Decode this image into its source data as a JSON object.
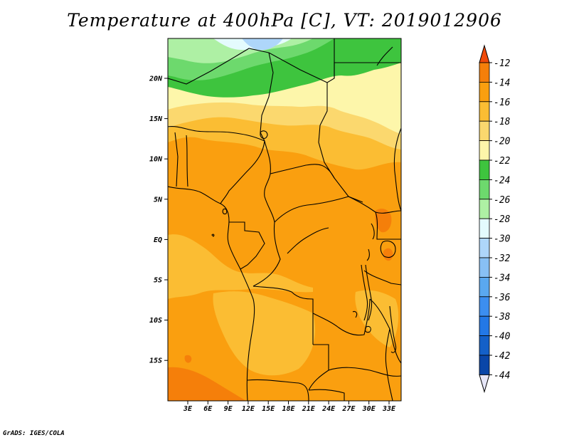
{
  "title": "Temperature at 400hPa [C], VT: 2019012906",
  "credit": "GrADS: IGES/COLA",
  "map": {
    "lat_labels": [
      "20N",
      "15N",
      "10N",
      "5N",
      "EQ",
      "5S",
      "10S",
      "15S"
    ],
    "lon_labels": [
      "3E",
      "6E",
      "9E",
      "12E",
      "15E",
      "18E",
      "21E",
      "24E",
      "27E",
      "30E",
      "33E"
    ]
  },
  "colorbar": {
    "levels": [
      "-12",
      "-14",
      "-16",
      "-18",
      "-20",
      "-22",
      "-24",
      "-26",
      "-28",
      "-30",
      "-32",
      "-34",
      "-36",
      "-38",
      "-40",
      "-42",
      "-44"
    ],
    "colors": [
      "#f05a0a",
      "#f57f0a",
      "#fa9f0f",
      "#fbbd33",
      "#fbd86e",
      "#fdf6aa",
      "#3ec43e",
      "#6dd96d",
      "#aef0a4",
      "#e4fbfd",
      "#aed6fa",
      "#88c0f4",
      "#5aa8f0",
      "#3c8ef0",
      "#2378e6",
      "#1460c8",
      "#0a46a8",
      "#0a1464"
    ],
    "top_color": "#f04a0a",
    "bottom_color": "#e6e6f8"
  }
}
